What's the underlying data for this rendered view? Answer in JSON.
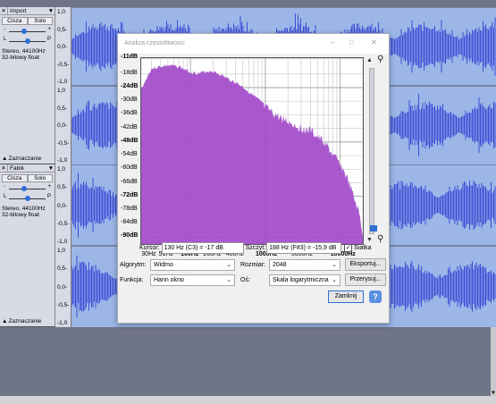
{
  "tracks": [
    {
      "name": "Import",
      "mute_label": "Cisza",
      "solo_label": "Solo",
      "gain_min": "-",
      "gain_max": "+",
      "pan_left": "L",
      "pan_right": "P",
      "info_line1": "Stereo, 44100Hz",
      "info_line2": "32-bitowy float",
      "select_label": "Zaznaczanie",
      "ruler_ticks": [
        "1,0",
        "0,5-",
        "0,0-",
        "-0,5-",
        "-1,0",
        "1,0",
        "0,5-",
        "0,0-",
        "-0,5-",
        "-1,0"
      ]
    },
    {
      "name": "Fabik",
      "mute_label": "Cisza",
      "solo_label": "Solo",
      "gain_min": "-",
      "gain_max": "+",
      "pan_left": "L",
      "pan_right": "P",
      "info_line1": "Stereo, 44100Hz",
      "info_line2": "32-bitowy float",
      "select_label": "Zaznaczanie",
      "ruler_ticks": [
        "1,0",
        "0,5-",
        "0,0-",
        "-0,5-",
        "-1,0",
        "1,0",
        "0,5-",
        "0,0-",
        "-0,5-",
        "-1,0"
      ]
    }
  ],
  "dialog": {
    "title": "Analiza częstotliwości",
    "window_min": "–",
    "window_max": "□",
    "window_close": "✕",
    "y_labels": [
      {
        "text": "-11dB",
        "bold": true
      },
      {
        "text": "-18dB",
        "bold": false
      },
      {
        "text": "-24dB",
        "bold": true
      },
      {
        "text": "-30dB",
        "bold": false
      },
      {
        "text": "-36dB",
        "bold": false
      },
      {
        "text": "-42dB",
        "bold": false
      },
      {
        "text": "-48dB",
        "bold": true
      },
      {
        "text": "-54dB",
        "bold": false
      },
      {
        "text": "-60dB",
        "bold": false
      },
      {
        "text": "-66dB",
        "bold": false
      },
      {
        "text": "-72dB",
        "bold": true
      },
      {
        "text": "-78dB",
        "bold": false
      },
      {
        "text": "-84dB",
        "bold": false
      },
      {
        "text": "-90dB",
        "bold": true
      }
    ],
    "x_labels": [
      {
        "text": "30Hz",
        "bold": false
      },
      {
        "text": "51Hz",
        "bold": false
      },
      {
        "text": "100Hz",
        "bold": true
      },
      {
        "text": "200Hz",
        "bold": false
      },
      {
        "text": "400Hz",
        "bold": false
      },
      {
        "text": "1000Hz",
        "bold": true
      },
      {
        "text": "3000Hz",
        "bold": false
      },
      {
        "text": "10000Hz",
        "bold": true
      }
    ],
    "cursor_label": "Kursor:",
    "cursor_value": "130 Hz (C3) = -17 dB",
    "peak_label": "Szczyt:",
    "peak_value": "188 Hz (F#3) = -15,9 dB",
    "grid_label": "Siatka",
    "grid_checked": true,
    "algorithm_label": "Algorytm:",
    "algorithm_value": "Widmo",
    "size_label": "Rozmiar:",
    "size_value": "2048",
    "export_button": "Eksportuj...",
    "function_label": "Funkcja:",
    "function_value": "Hann okno",
    "axis_label": "Oś:",
    "axis_value": "Skala logarytmiczna",
    "replot_button": "Przerysuj...",
    "close_button": "Zamknij",
    "help_icon": "?"
  },
  "chart_data": {
    "type": "area",
    "xscale": "log",
    "xlim": [
      22,
      20000
    ],
    "ylim": [
      -93,
      -11
    ],
    "grid": true,
    "fill_color": "#a24bc9",
    "x": [
      22,
      30,
      40,
      51,
      70,
      100,
      130,
      150,
      188,
      250,
      300,
      400,
      500,
      700,
      1000,
      1500,
      2000,
      3000,
      4000,
      5000,
      6000,
      7000,
      8000,
      10000,
      12000,
      14000,
      16000,
      18000,
      20000
    ],
    "y": [
      -24,
      -15,
      -14,
      -13.5,
      -14,
      -16.5,
      -17,
      -16.5,
      -15.9,
      -17.5,
      -19,
      -21,
      -23,
      -27,
      -31,
      -35,
      -37,
      -40,
      -41,
      -44,
      -46,
      -49,
      -52,
      -56,
      -61,
      -67,
      -73,
      -78,
      -87
    ]
  }
}
